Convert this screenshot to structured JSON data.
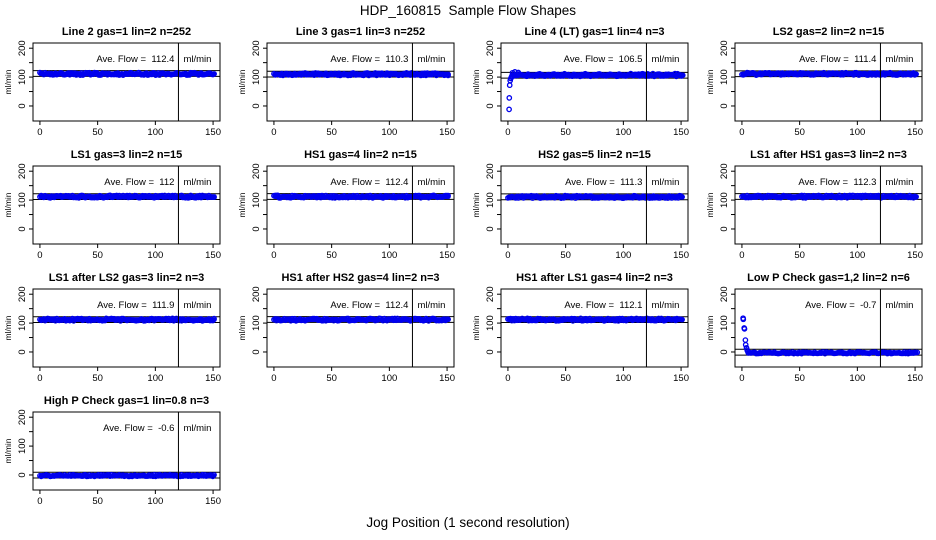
{
  "header": {
    "title": "HDP_160815  Sample Flow Shapes"
  },
  "footer": {
    "xlabel": "Jog Position (1 second resolution)"
  },
  "chart_data": {
    "type": "scatter",
    "title": "HDP_160815  Sample Flow Shapes",
    "xlabel": "Jog Position (1 second resolution)",
    "ylabel": "ml/min",
    "x_ticks": [
      0,
      50,
      100,
      150
    ],
    "y_ticks": [
      0,
      50,
      100,
      150,
      200
    ],
    "y_tick_labels": [
      0,
      100,
      200
    ],
    "xlim": [
      -6,
      156
    ],
    "ylim": [
      -52,
      218
    ],
    "vline_x": 120,
    "tolerance_offset": 10,
    "point_color": "#0000EE",
    "annotation_prefix": "Ave. Flow =",
    "annotation_unit": "ml/min",
    "grid_cols": 4,
    "grid_rows": 4,
    "plots": [
      {
        "title": "Line 2 gas=1 lin=2 n=252",
        "ave_flow": "112.4",
        "band": {
          "x0": 0,
          "x1": 152,
          "center": 111,
          "spread": 10
        },
        "points": []
      },
      {
        "title": "Line 3 gas=1 lin=3 n=252",
        "ave_flow": "110.3",
        "band": {
          "x0": 0,
          "x1": 152,
          "center": 110,
          "spread": 11
        },
        "points": []
      },
      {
        "title": "Line 4 (LT) gas=1 lin=4 n=3",
        "ave_flow": "106.5",
        "band": {
          "x0": 4,
          "x1": 152,
          "center": 107,
          "spread": 11
        },
        "points": [
          [
            1,
            -12
          ],
          [
            1.2,
            28
          ],
          [
            1.5,
            72
          ],
          [
            2,
            88
          ],
          [
            2.5,
            95
          ],
          [
            3,
            100
          ],
          [
            3.5,
            104
          ],
          [
            4,
            115
          ],
          [
            6,
            118
          ],
          [
            9,
            116
          ]
        ]
      },
      {
        "title": "LS2 gas=2 lin=2 n=15",
        "ave_flow": "111.4",
        "band": {
          "x0": 0,
          "x1": 152,
          "center": 111,
          "spread": 10
        },
        "points": []
      },
      {
        "title": "LS1 gas=3 lin=2 n=15",
        "ave_flow": "112",
        "band": {
          "x0": 0,
          "x1": 152,
          "center": 112,
          "spread": 10
        },
        "points": []
      },
      {
        "title": "HS1 gas=4 lin=2 n=15",
        "ave_flow": "112.4",
        "band": {
          "x0": 0,
          "x1": 152,
          "center": 112,
          "spread": 10
        },
        "points": []
      },
      {
        "title": "HS2 gas=5 lin=2 n=15",
        "ave_flow": "111.3",
        "band": {
          "x0": 0,
          "x1": 152,
          "center": 111,
          "spread": 10
        },
        "points": []
      },
      {
        "title": "LS1 after HS1 gas=3 lin=2 n=3",
        "ave_flow": "112.3",
        "band": {
          "x0": 0,
          "x1": 152,
          "center": 112,
          "spread": 10
        },
        "points": []
      },
      {
        "title": "LS1 after LS2 gas=3 lin=2 n=3",
        "ave_flow": "111.9",
        "band": {
          "x0": 0,
          "x1": 152,
          "center": 112,
          "spread": 10
        },
        "points": []
      },
      {
        "title": "HS1 after HS2 gas=4 lin=2 n=3",
        "ave_flow": "112.4",
        "band": {
          "x0": 0,
          "x1": 152,
          "center": 112,
          "spread": 10
        },
        "points": []
      },
      {
        "title": "HS1 after LS1 gas=4 lin=2 n=3",
        "ave_flow": "112.1",
        "band": {
          "x0": 0,
          "x1": 152,
          "center": 112,
          "spread": 10
        },
        "points": []
      },
      {
        "title": "Low P Check gas=1,2 lin=2 n=6",
        "ave_flow": "-0.7",
        "band": {
          "x0": 5.5,
          "x1": 152,
          "center": -3,
          "spread": 7
        },
        "points": [
          [
            1,
            117
          ],
          [
            1.2,
            113
          ],
          [
            2,
            83
          ],
          [
            2.2,
            80
          ],
          [
            3,
            41
          ],
          [
            3.3,
            25
          ],
          [
            4,
            14
          ],
          [
            4.6,
            6
          ],
          [
            5.2,
            1
          ]
        ]
      },
      {
        "title": "High P Check gas=1 lin=0.8 n=3",
        "ave_flow": "-0.6",
        "band": {
          "x0": 0,
          "x1": 152,
          "center": -2,
          "spread": 7
        },
        "points": []
      }
    ]
  }
}
